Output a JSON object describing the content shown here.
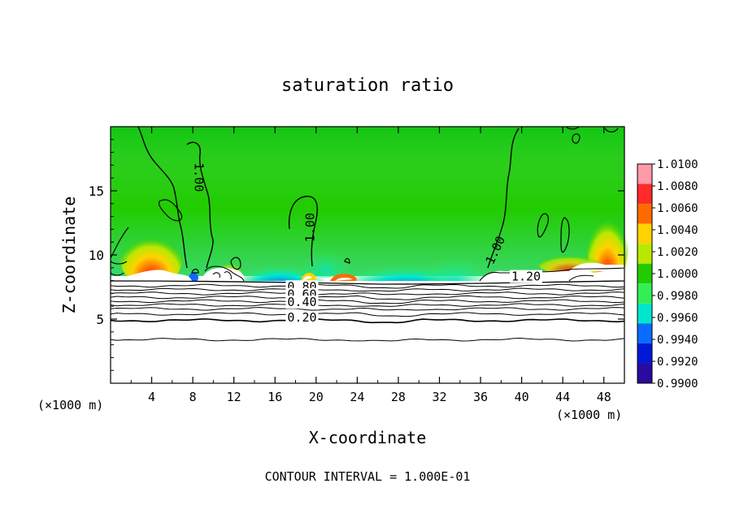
{
  "chart_data": {
    "type": "heatmap",
    "title": "saturation ratio",
    "xlabel": "X-coordinate",
    "ylabel": "Z-coordinate",
    "x_unit_left": "(×1000 m)",
    "x_unit_right": "(×1000 m)",
    "xlim": [
      0,
      50
    ],
    "ylim": [
      0,
      20
    ],
    "x_ticks": [
      4,
      8,
      12,
      16,
      20,
      24,
      28,
      32,
      36,
      40,
      44,
      48
    ],
    "y_ticks": [
      5,
      10,
      15
    ],
    "footer": "CONTOUR INTERVAL = 1.000E-01",
    "colorbar": {
      "labels": [
        "1.0100",
        "1.0080",
        "1.0060",
        "1.0040",
        "1.0020",
        "1.0000",
        "0.9980",
        "0.9960",
        "0.9940",
        "0.9920",
        "0.9900"
      ],
      "colors": [
        "#ff9aa8",
        "#ff2a2a",
        "#ff6a00",
        "#ffd200",
        "#b9e800",
        "#22cc00",
        "#33ee55",
        "#00e6cc",
        "#0a6cff",
        "#0018d8",
        "#2a0aa0"
      ]
    },
    "contour_labels": [
      {
        "text": "1.00",
        "x": 8.2,
        "y": 17.2,
        "angle": 90
      },
      {
        "text": "1.00",
        "x": 19.8,
        "y": 11.0,
        "angle": -90
      },
      {
        "text": "1.00",
        "x": 37.2,
        "y": 9.2,
        "angle": -65
      },
      {
        "text": "1.20",
        "x": 39.0,
        "y": 8.0,
        "angle": 0
      },
      {
        "text": "0.80",
        "x": 17.2,
        "y": 7.2,
        "angle": 0
      },
      {
        "text": "0.60",
        "x": 17.2,
        "y": 6.6,
        "angle": 0
      },
      {
        "text": "0.40",
        "x": 17.2,
        "y": 6.0,
        "angle": 0
      },
      {
        "text": "0.20",
        "x": 17.2,
        "y": 4.8,
        "angle": 0
      }
    ],
    "stratified_contour_levels_z": [
      7.6,
      7.3,
      7.0,
      6.7,
      6.4,
      6.1,
      5.8,
      5.4,
      4.9,
      3.4
    ]
  }
}
